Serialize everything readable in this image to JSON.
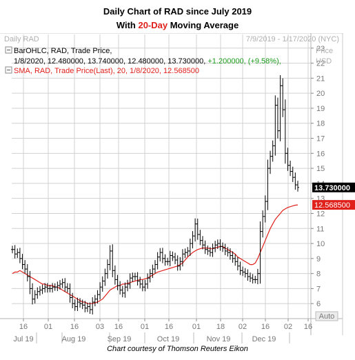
{
  "title_line1": "Daily Chart of RAD since July 2019",
  "title_line2_pre": "With ",
  "title_line2_highlight": "20-Day",
  "title_line2_post": " Moving Average",
  "caption": "Chart courtesy of Thomson Reuters Eikon",
  "chart_data": {
    "type": "line",
    "instrument": "Daily RAD",
    "date_range": "7/9/2019 - 1/17/2020 (NYC)",
    "y_axis_label": "Price\nUSD",
    "ylim": [
      5,
      24
    ],
    "y_ticks": [
      6,
      7,
      8,
      9,
      10,
      11,
      12,
      13,
      14,
      15,
      16,
      17,
      18,
      19,
      20,
      21,
      22,
      23
    ],
    "x_tick_labels": [
      "16",
      "01",
      "16",
      "03",
      "16",
      "01",
      "16",
      "01",
      "18",
      "02",
      "16",
      "02",
      "16"
    ],
    "month_labels": [
      "Jul 19",
      "Aug 19",
      "Sep 19",
      "Oct 19",
      "Nov 19",
      "Dec 19"
    ],
    "auto_label": "Auto",
    "grid": true,
    "legend": {
      "bar_line1": "BarOHLC, RAD, Trade Price,",
      "bar_line2": "1/8/2020, 12.480000, 13.740000, 12.480000, 13.730000, +1.200000, (+9.58%),",
      "sma_line": "SMA, RAD, Trade Price(Last),  20,  1/8/2020, 12.568500"
    },
    "last_price_label": "13.730000",
    "sma_label": "12.568500",
    "series": [
      {
        "name": "BarOHLC, RAD, Trade Price",
        "color": "#000000",
        "ohlc_close_values": [
          9.6,
          9.3,
          9.4,
          9.0,
          8.6,
          8.3,
          7.8,
          7.0,
          6.3,
          6.6,
          6.8,
          6.9,
          7.0,
          7.1,
          7.0,
          7.0,
          7.1,
          7.1,
          7.2,
          7.3,
          7.4,
          7.1,
          7.0,
          6.4,
          6.0,
          5.8,
          6.1,
          6.0,
          5.9,
          5.7,
          5.8,
          5.6,
          6.1,
          6.3,
          6.6,
          7.1,
          7.5,
          8.0,
          8.6,
          9.5,
          8.2,
          7.6,
          7.2,
          6.9,
          6.7,
          7.1,
          7.3,
          7.7,
          7.8,
          7.8,
          7.5,
          7.3,
          7.1,
          7.3,
          7.7,
          8.0,
          8.3,
          8.6,
          9.1,
          9.4,
          9.0,
          8.8,
          8.8,
          9.2,
          9.1,
          8.9,
          8.5,
          8.8,
          9.3,
          9.4,
          9.5,
          10.0,
          10.5,
          11.3,
          10.6,
          10.2,
          9.9,
          9.6,
          9.5,
          9.4,
          9.7,
          9.9,
          10.0,
          9.8,
          9.7,
          9.5,
          9.4,
          9.2,
          9.0,
          8.8,
          8.5,
          8.2,
          8.1,
          8.0,
          7.8,
          7.7,
          7.6,
          7.6,
          8.0,
          10.8,
          11.8,
          12.8,
          15.0,
          15.8,
          16.5,
          19.2,
          17.5,
          20.5,
          18.9,
          16.0,
          15.2,
          14.8,
          14.4,
          13.9,
          13.73
        ]
      },
      {
        "name": "SMA, RAD, Trade Price(Last), 20",
        "color": "#e0201b",
        "values": [
          8.0,
          8.1,
          8.1,
          8.2,
          8.1,
          8.0,
          7.9,
          7.8,
          7.7,
          7.6,
          7.5,
          7.4,
          7.3,
          7.3,
          7.2,
          7.2,
          7.2,
          7.1,
          7.1,
          7.0,
          6.9,
          6.8,
          6.7,
          6.6,
          6.5,
          6.4,
          6.3,
          6.2,
          6.1,
          6.1,
          6.0,
          6.0,
          6.0,
          6.05,
          6.1,
          6.2,
          6.3,
          6.5,
          6.7,
          6.9,
          7.0,
          7.1,
          7.2,
          7.2,
          7.3,
          7.3,
          7.35,
          7.4,
          7.45,
          7.5,
          7.55,
          7.6,
          7.6,
          7.65,
          7.7,
          7.8,
          7.9,
          8.0,
          8.1,
          8.15,
          8.2,
          8.25,
          8.3,
          8.35,
          8.4,
          8.45,
          8.5,
          8.6,
          8.7,
          8.9,
          9.1,
          9.25,
          9.4,
          9.5,
          9.6,
          9.65,
          9.7,
          9.7,
          9.7,
          9.65,
          9.65,
          9.7,
          9.75,
          9.8,
          9.8,
          9.7,
          9.6,
          9.5,
          9.4,
          9.3,
          9.1,
          9.0,
          8.9,
          8.8,
          8.7,
          8.6,
          8.6,
          8.7,
          9.0,
          9.4,
          9.8,
          10.2,
          10.6,
          11.0,
          11.3,
          11.6,
          11.8,
          12.0,
          12.2,
          12.3,
          12.4,
          12.45,
          12.5,
          12.55,
          12.5685
        ]
      }
    ]
  }
}
